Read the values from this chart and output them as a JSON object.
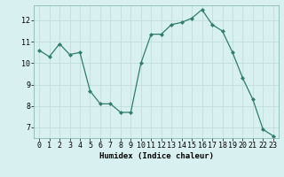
{
  "x": [
    0,
    1,
    2,
    3,
    4,
    5,
    6,
    7,
    8,
    9,
    10,
    11,
    12,
    13,
    14,
    15,
    16,
    17,
    18,
    19,
    20,
    21,
    22,
    23
  ],
  "y": [
    10.6,
    10.3,
    10.9,
    10.4,
    10.5,
    8.7,
    8.1,
    8.1,
    7.7,
    7.7,
    10.0,
    11.35,
    11.35,
    11.8,
    11.9,
    12.1,
    12.5,
    11.8,
    11.5,
    10.5,
    9.3,
    8.3,
    6.9,
    6.6
  ],
  "line_color": "#2e7d6e",
  "marker": "D",
  "marker_size": 2.0,
  "bg_color": "#d9f0f0",
  "grid_color": "#c0dede",
  "xlabel": "Humidex (Indice chaleur)",
  "ylim": [
    6.5,
    12.7
  ],
  "xlim": [
    -0.5,
    23.5
  ],
  "yticks": [
    7,
    8,
    9,
    10,
    11,
    12
  ],
  "xticks": [
    0,
    1,
    2,
    3,
    4,
    5,
    6,
    7,
    8,
    9,
    10,
    11,
    12,
    13,
    14,
    15,
    16,
    17,
    18,
    19,
    20,
    21,
    22,
    23
  ],
  "label_fontsize": 6.5,
  "tick_fontsize": 6.0
}
